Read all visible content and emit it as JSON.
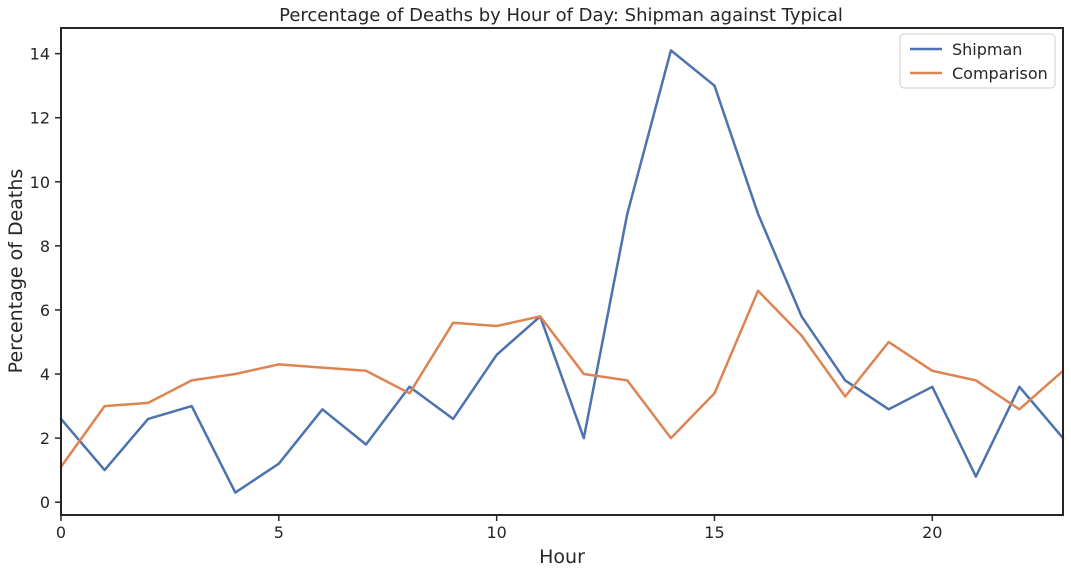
{
  "chart_data": {
    "type": "line",
    "title": "Percentage of Deaths by Hour of Day: Shipman against Typical",
    "xlabel": "Hour",
    "ylabel": "Percentage of Deaths",
    "x": [
      0,
      1,
      2,
      3,
      4,
      5,
      6,
      7,
      8,
      9,
      10,
      11,
      12,
      13,
      14,
      15,
      16,
      17,
      18,
      19,
      20,
      21,
      22,
      23
    ],
    "xlim": [
      0,
      23
    ],
    "ylim": [
      -0.4,
      14.8
    ],
    "xticks": [
      0,
      5,
      10,
      15,
      20
    ],
    "yticks": [
      0,
      2,
      4,
      6,
      8,
      10,
      12,
      14
    ],
    "grid": false,
    "legend_position": "top-right",
    "series": [
      {
        "name": "Shipman",
        "color": "#4c72b0",
        "values": [
          2.6,
          1.0,
          2.6,
          3.0,
          0.3,
          1.2,
          2.9,
          1.8,
          3.6,
          2.6,
          4.6,
          5.8,
          2.0,
          9.0,
          14.1,
          13.0,
          9.0,
          5.8,
          3.8,
          2.9,
          3.6,
          0.8,
          3.6,
          2.0
        ]
      },
      {
        "name": "Comparison",
        "color": "#dd8452",
        "values": [
          1.1,
          3.0,
          3.1,
          3.8,
          4.0,
          4.3,
          4.2,
          4.1,
          3.4,
          5.6,
          5.5,
          5.8,
          4.0,
          3.8,
          2.0,
          3.4,
          6.6,
          5.2,
          3.3,
          5.0,
          4.1,
          3.8,
          2.9,
          4.1
        ]
      }
    ]
  }
}
